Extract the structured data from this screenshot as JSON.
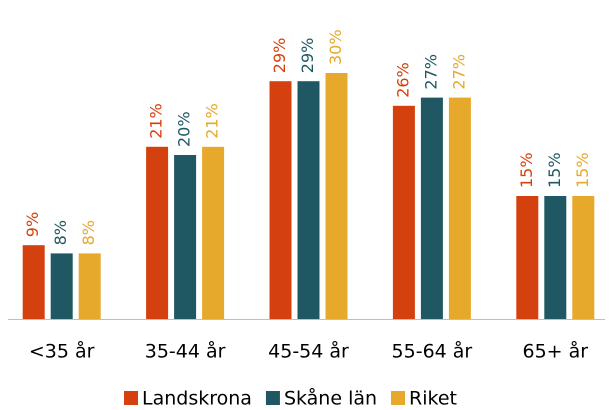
{
  "chart_data": {
    "type": "bar",
    "categories": [
      "<35 år",
      "35-44 år",
      "45-54 år",
      "55-64 år",
      "65+ år"
    ],
    "series": [
      {
        "name": "Landskrona",
        "color": "#d4410e",
        "values": [
          9,
          21,
          29,
          26,
          15
        ],
        "value_labels": [
          "9%",
          "21%",
          "29%",
          "26%",
          "15%"
        ]
      },
      {
        "name": "Skåne län",
        "color": "#1f5862",
        "values": [
          8,
          20,
          29,
          27,
          15
        ],
        "value_labels": [
          "8%",
          "20%",
          "29%",
          "27%",
          "15%"
        ]
      },
      {
        "name": "Riket",
        "color": "#e6a92b",
        "values": [
          8,
          21,
          30,
          27,
          15
        ],
        "value_labels": [
          "8%",
          "21%",
          "30%",
          "27%",
          "15%"
        ]
      }
    ],
    "legend": "bottom"
  }
}
